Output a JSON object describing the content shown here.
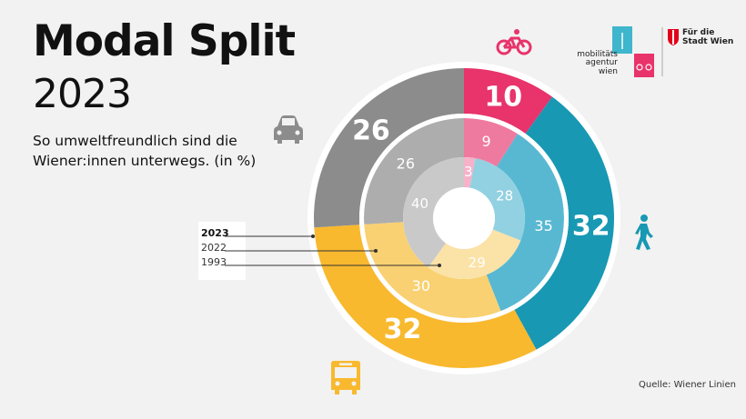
{
  "header": {
    "title_line1": "Modal Split",
    "title_line2": "2023",
    "subtitle": "So umweltfreundlich sind die Wiener:innen unterwegs. (in %)"
  },
  "legend": {
    "year_current": "2023",
    "year_mid": "2022",
    "year_old": "1993"
  },
  "source": "Quelle: Wiener Linien",
  "logos": {
    "mobility_agency": "mobilitäts agentur wien",
    "city": "Für die Stadt Wien"
  },
  "icons": [
    "bicycle-icon",
    "car-icon",
    "pedestrian-icon",
    "bus-icon"
  ],
  "colors": {
    "bike": [
      "#e8336b",
      "#ef7aa0",
      "#f5b2c8"
    ],
    "walk": [
      "#1898b3",
      "#58b8d2",
      "#92d1e1"
    ],
    "public_transport": [
      "#f8b92e",
      "#f9d172",
      "#fbe2a6"
    ],
    "car": [
      "#8c8c8c",
      "#adadad",
      "#c9c9c9"
    ]
  },
  "chart_data": {
    "type": "pie",
    "rings": [
      "2023",
      "2022",
      "1993"
    ],
    "categories": [
      "Fahrrad",
      "Zu Fuß",
      "Öffis",
      "Auto"
    ],
    "series": [
      {
        "name": "2023",
        "values": [
          10,
          32,
          32,
          26
        ]
      },
      {
        "name": "2022",
        "values": [
          9,
          35,
          30,
          26
        ]
      },
      {
        "name": "1993",
        "values": [
          3,
          28,
          29,
          40
        ]
      }
    ]
  }
}
